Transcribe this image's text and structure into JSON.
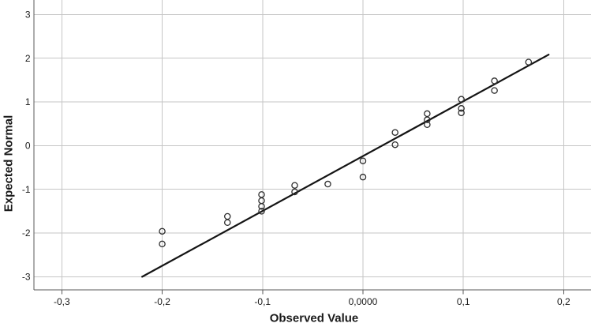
{
  "chart_data": {
    "type": "scatter",
    "xlabel": "Observed Value",
    "ylabel": "Expected Normal",
    "xlim": [
      -0.3278,
      0.2272
    ],
    "ylim": [
      -3.3,
      3.33
    ],
    "grid": true,
    "legend": "none",
    "x_ticks": [
      {
        "value": -0.3,
        "label": "-0,3"
      },
      {
        "value": -0.2,
        "label": "-0,2"
      },
      {
        "value": -0.1,
        "label": "-0,1"
      },
      {
        "value": 0.0,
        "label": "0,0000"
      },
      {
        "value": 0.1,
        "label": "0,1"
      },
      {
        "value": 0.2,
        "label": "0,2"
      }
    ],
    "y_ticks": [
      {
        "value": 3,
        "label": "3"
      },
      {
        "value": 2,
        "label": "2"
      },
      {
        "value": 1,
        "label": "1"
      },
      {
        "value": 0,
        "label": "0"
      },
      {
        "value": -1,
        "label": "-1"
      },
      {
        "value": -2,
        "label": "-2"
      },
      {
        "value": -3,
        "label": "-3"
      }
    ],
    "points": [
      {
        "x": -0.2,
        "y": -1.96
      },
      {
        "x": -0.2,
        "y": -2.25
      },
      {
        "x": -0.135,
        "y": -1.62
      },
      {
        "x": -0.135,
        "y": -1.76
      },
      {
        "x": -0.101,
        "y": -1.12
      },
      {
        "x": -0.101,
        "y": -1.26
      },
      {
        "x": -0.101,
        "y": -1.39
      },
      {
        "x": -0.101,
        "y": -1.5
      },
      {
        "x": -0.068,
        "y": -0.91
      },
      {
        "x": -0.068,
        "y": -1.06
      },
      {
        "x": -0.035,
        "y": -0.88
      },
      {
        "x": 0.0,
        "y": -0.35
      },
      {
        "x": 0.0,
        "y": -0.72
      },
      {
        "x": 0.032,
        "y": 0.3
      },
      {
        "x": 0.032,
        "y": 0.02
      },
      {
        "x": 0.064,
        "y": 0.73
      },
      {
        "x": 0.064,
        "y": 0.59
      },
      {
        "x": 0.064,
        "y": 0.48
      },
      {
        "x": 0.098,
        "y": 1.06
      },
      {
        "x": 0.098,
        "y": 0.85
      },
      {
        "x": 0.098,
        "y": 0.75
      },
      {
        "x": 0.131,
        "y": 1.48
      },
      {
        "x": 0.131,
        "y": 1.26
      },
      {
        "x": 0.165,
        "y": 1.91
      }
    ],
    "fit_line": {
      "x1": -0.22,
      "y1": -3.0,
      "x2": 0.185,
      "y2": 2.08
    },
    "marker": {
      "shape": "open-circle",
      "radius": 3.6
    },
    "colors": {
      "background": "#ffffff",
      "gridline": "#c6c6c6",
      "axis": "#595959",
      "fit_line": "#141414",
      "marker_stroke": "#2e2e2e",
      "text": "#1a1a1a"
    }
  }
}
